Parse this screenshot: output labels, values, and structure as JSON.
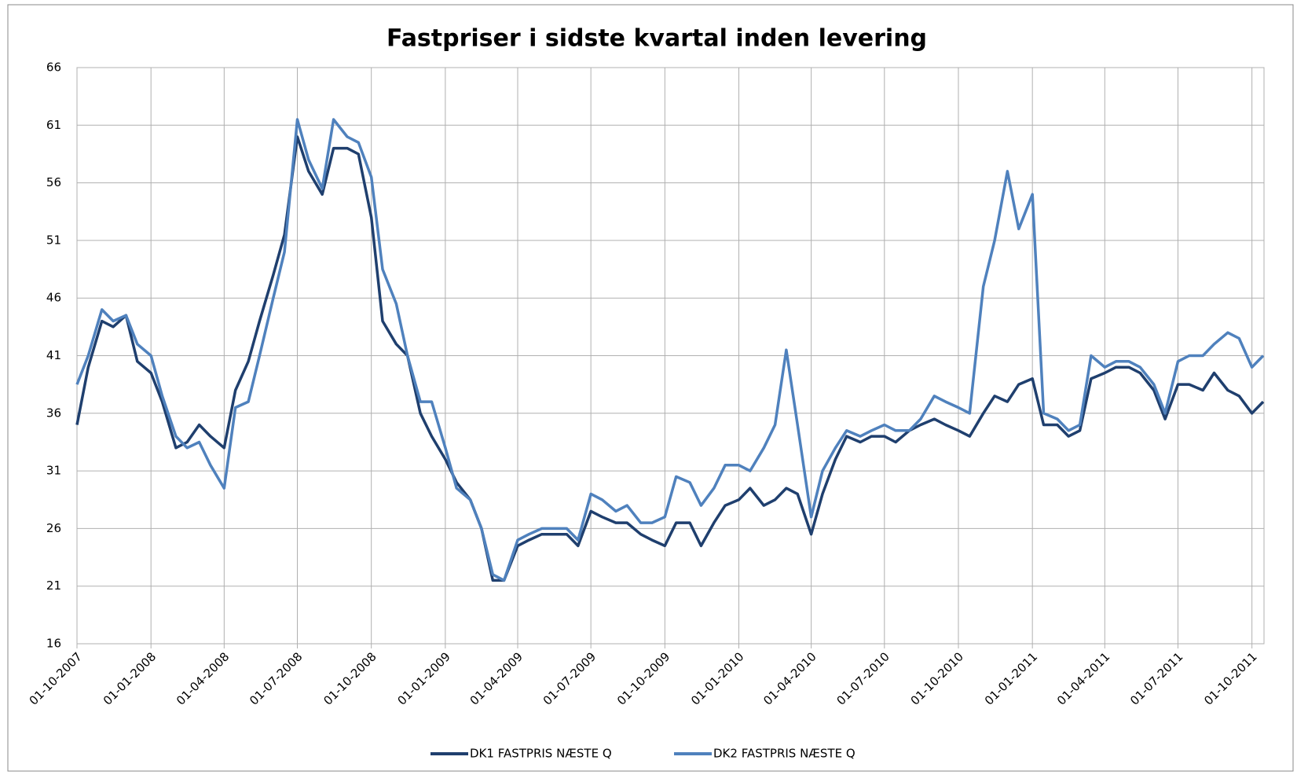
{
  "chart_data": {
    "type": "line",
    "title": "Fastpriser i sidste kvartal inden levering",
    "x": [
      "01-10-2007",
      "15-10-2007",
      "01-11-2007",
      "15-11-2007",
      "01-12-2007",
      "15-12-2007",
      "01-01-2008",
      "15-01-2008",
      "01-02-2008",
      "15-02-2008",
      "01-03-2008",
      "15-03-2008",
      "01-04-2008",
      "15-04-2008",
      "01-05-2008",
      "15-05-2008",
      "01-06-2008",
      "15-06-2008",
      "01-07-2008",
      "15-07-2008",
      "01-08-2008",
      "15-08-2008",
      "01-09-2008",
      "15-09-2008",
      "01-10-2008",
      "15-10-2008",
      "01-11-2008",
      "15-11-2008",
      "01-12-2008",
      "15-12-2008",
      "01-01-2009",
      "15-01-2009",
      "01-02-2009",
      "15-02-2009",
      "01-03-2009",
      "15-03-2009",
      "01-04-2009",
      "15-04-2009",
      "01-05-2009",
      "15-05-2009",
      "01-06-2009",
      "15-06-2009",
      "01-07-2009",
      "15-07-2009",
      "01-08-2009",
      "15-08-2009",
      "01-09-2009",
      "15-09-2009",
      "01-10-2009",
      "15-10-2009",
      "01-11-2009",
      "15-11-2009",
      "01-12-2009",
      "15-12-2009",
      "01-01-2010",
      "15-01-2010",
      "01-02-2010",
      "15-02-2010",
      "01-03-2010",
      "15-03-2010",
      "01-04-2010",
      "15-04-2010",
      "01-05-2010",
      "15-05-2010",
      "01-06-2010",
      "15-06-2010",
      "01-07-2010",
      "15-07-2010",
      "01-08-2010",
      "15-08-2010",
      "01-09-2010",
      "15-09-2010",
      "01-10-2010",
      "15-10-2010",
      "01-11-2010",
      "15-11-2010",
      "01-12-2010",
      "15-12-2010",
      "01-01-2011",
      "15-01-2011",
      "01-02-2011",
      "15-02-2011",
      "01-03-2011",
      "15-03-2011",
      "01-04-2011",
      "15-04-2011",
      "01-05-2011",
      "15-05-2011",
      "01-06-2011",
      "15-06-2011",
      "01-07-2011",
      "15-07-2011",
      "01-08-2011",
      "15-08-2011",
      "01-09-2011",
      "15-09-2011",
      "01-10-2011",
      "15-10-2011"
    ],
    "series": [
      {
        "name": "DK1 FASTPRIS NÆSTE Q",
        "color": "#1f3f6e",
        "values": [
          35,
          40,
          44,
          43.5,
          44.5,
          40.5,
          39.5,
          37,
          33,
          33.5,
          35,
          34,
          33,
          38,
          40.5,
          44,
          48,
          51.5,
          60,
          57,
          55,
          59,
          59,
          58.5,
          53,
          44,
          42,
          41,
          36,
          34,
          32,
          30,
          28.5,
          26,
          21.5,
          21.5,
          24.5,
          25,
          25.5,
          25.5,
          25.5,
          24.5,
          27.5,
          27,
          26.5,
          26.5,
          25.5,
          25,
          24.5,
          26.5,
          26.5,
          24.5,
          26.5,
          28,
          28.5,
          29.5,
          28,
          28.5,
          29.5,
          29,
          25.5,
          29,
          32,
          34,
          33.5,
          34,
          34,
          33.5,
          34.5,
          35,
          35.5,
          35,
          34.5,
          34,
          36,
          37.5,
          37,
          38.5,
          39,
          35,
          35,
          34,
          34.5,
          39,
          39.5,
          40,
          40,
          39.5,
          38,
          35.5,
          38.5,
          38.5,
          38,
          39.5,
          38,
          37.5,
          36,
          37
        ]
      },
      {
        "name": "DK2 FASTPRIS NÆSTE Q",
        "color": "#4f81bd",
        "values": [
          38.5,
          41,
          45,
          44,
          44.5,
          42,
          41,
          37.5,
          34,
          33,
          33.5,
          31.5,
          29.5,
          36.5,
          37,
          41,
          46,
          50,
          61.5,
          58,
          55.5,
          61.5,
          60,
          59.5,
          56.5,
          48.5,
          45.5,
          41,
          37,
          37,
          33,
          29.5,
          28.5,
          26,
          22,
          21.5,
          25,
          25.5,
          26,
          26,
          26,
          25,
          29,
          28.5,
          27.5,
          28,
          26.5,
          26.5,
          27,
          30.5,
          30,
          28,
          29.5,
          31.5,
          31.5,
          31,
          33,
          35,
          41.5,
          35,
          27,
          31,
          33,
          34.5,
          34,
          34.5,
          35,
          34.5,
          34.5,
          35.5,
          37.5,
          37,
          36.5,
          36,
          47,
          51,
          57,
          52,
          55,
          36,
          35.5,
          34.5,
          35,
          41,
          40,
          40.5,
          40.5,
          40,
          38.5,
          36,
          40.5,
          41,
          41,
          42,
          43,
          42.5,
          40,
          41
        ]
      }
    ],
    "xlim": [
      "01-10-2007",
      "16-10-2011"
    ],
    "xticks": [
      "01-10-2007",
      "01-01-2008",
      "01-04-2008",
      "01-07-2008",
      "01-10-2008",
      "01-01-2009",
      "01-04-2009",
      "01-07-2009",
      "01-10-2009",
      "01-01-2010",
      "01-04-2010",
      "01-07-2010",
      "01-10-2010",
      "01-01-2011",
      "01-04-2011",
      "01-07-2011",
      "01-10-2011"
    ],
    "ylim": [
      16,
      66
    ],
    "yticks": [
      16,
      21,
      26,
      31,
      36,
      41,
      46,
      51,
      56,
      61,
      66
    ],
    "grid": true,
    "legend": "bottom"
  }
}
